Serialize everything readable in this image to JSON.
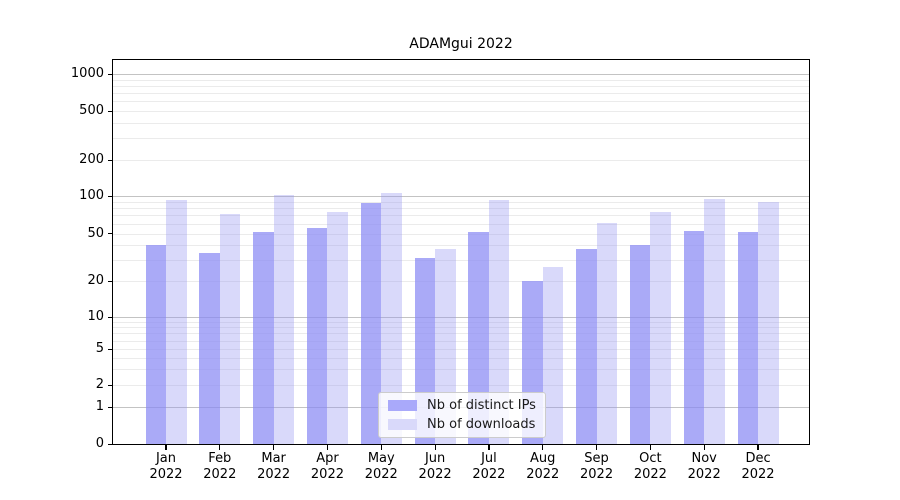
{
  "title": "ADAMgui 2022",
  "chart_data": {
    "type": "bar",
    "title": "ADAMgui 2022",
    "categories": [
      "Jan 2022",
      "Feb 2022",
      "Mar 2022",
      "Apr 2022",
      "May 2022",
      "Jun 2022",
      "Jul 2022",
      "Aug 2022",
      "Sep 2022",
      "Oct 2022",
      "Nov 2022",
      "Dec 2022"
    ],
    "series": [
      {
        "name": "Nb of distinct IPs",
        "color": "#a9a9fa",
        "fill": "rgba(137,137,244,0.72)",
        "values": [
          40,
          34,
          51,
          55,
          88,
          31,
          51,
          20,
          37,
          40,
          52,
          51
        ]
      },
      {
        "name": "Nb of downloads",
        "color": "#d9d9fa",
        "fill": "rgba(151,151,241,0.36)",
        "values": [
          93,
          72,
          102,
          74,
          106,
          37,
          93,
          26,
          61,
          74,
          94,
          90
        ]
      }
    ],
    "yscale": "symlog",
    "yticks": [
      0,
      1,
      2,
      5,
      10,
      20,
      50,
      100,
      200,
      500,
      1000
    ],
    "ylim": [
      0,
      1200
    ],
    "xlabel": "",
    "ylabel": "",
    "grid": true,
    "legend_position": "lower-center-inside"
  },
  "colors": {
    "major_grid": "#c3c3c3",
    "minor_grid": "#ebebeb",
    "spine": "#000000",
    "text": "#1a1a1a",
    "legend_border": "#cccccc",
    "legend_background": "rgba(255,255,255,0.8)"
  }
}
